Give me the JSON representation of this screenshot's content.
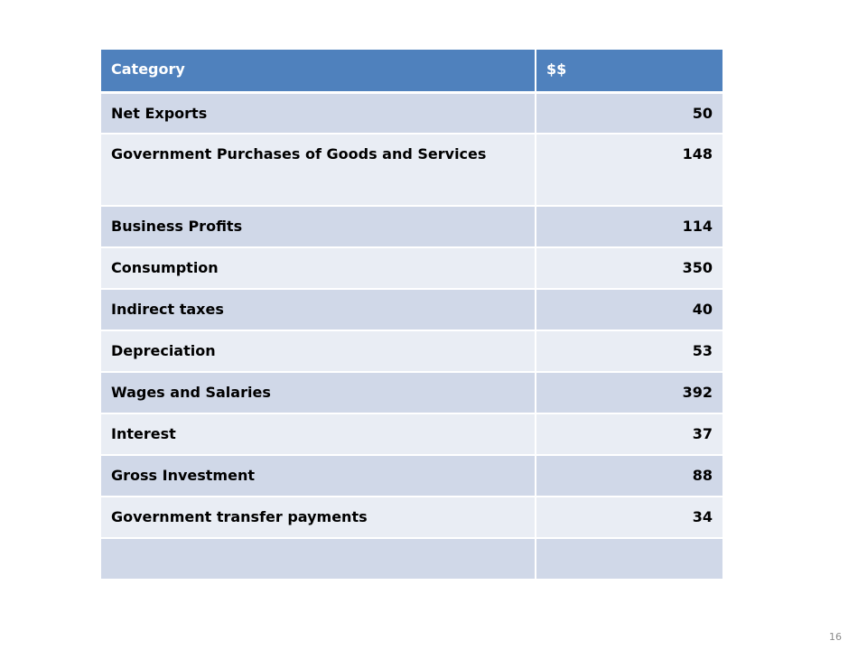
{
  "table": {
    "header": {
      "category": "Category",
      "amount": "$$"
    },
    "rows": [
      {
        "category": "Net Exports",
        "amount": "50"
      },
      {
        "category": "Government Purchases of Goods and Services",
        "amount": "148"
      },
      {
        "category": "Business Profits",
        "amount": "114"
      },
      {
        "category": "Consumption",
        "amount": "350"
      },
      {
        "category": "Indirect taxes",
        "amount": "40"
      },
      {
        "category": "Depreciation",
        "amount": "53"
      },
      {
        "category": "Wages and Salaries",
        "amount": "392"
      },
      {
        "category": "Interest",
        "amount": "37"
      },
      {
        "category": "Gross Investment",
        "amount": "88"
      },
      {
        "category": "Government transfer payments",
        "amount": "34"
      },
      {
        "category": "",
        "amount": ""
      }
    ]
  },
  "page_number": "16",
  "colors": {
    "header_bg": "#4f81bd",
    "row_odd_bg": "#d0d8e8",
    "row_even_bg": "#e9edf4"
  }
}
